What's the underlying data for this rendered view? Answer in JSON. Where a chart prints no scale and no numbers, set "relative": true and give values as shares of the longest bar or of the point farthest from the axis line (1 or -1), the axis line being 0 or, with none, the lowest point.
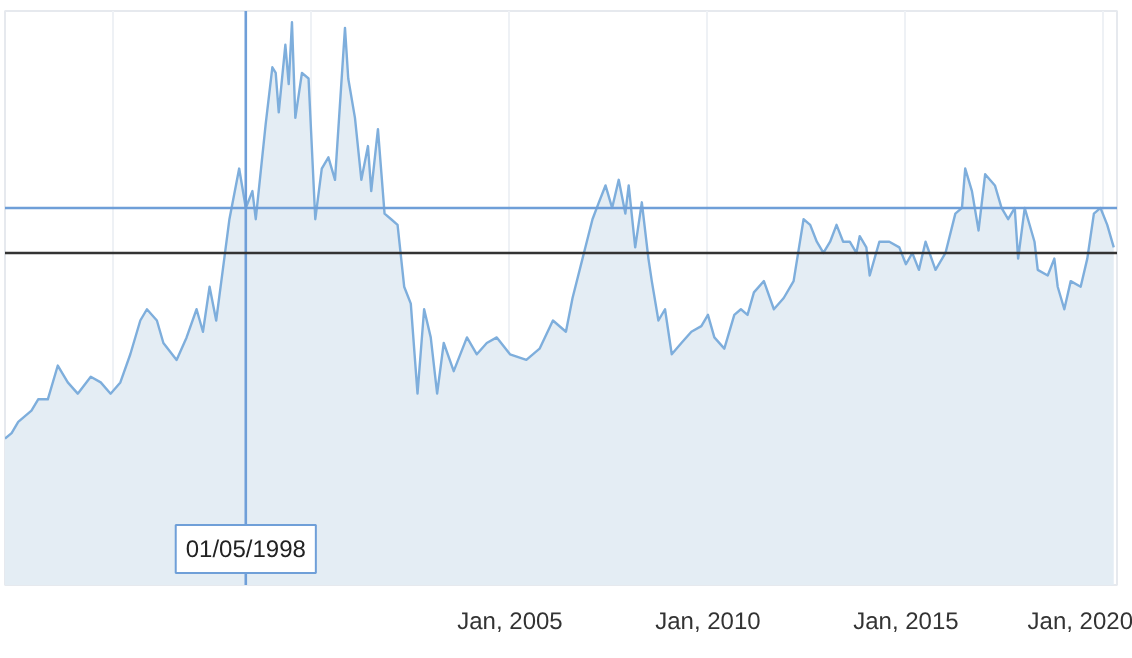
{
  "chart_data": {
    "type": "area",
    "relative": true,
    "color": "#7eaedc",
    "x": [
      "1992-04",
      "1992-06",
      "1992-08",
      "1992-12",
      "1993-02",
      "1993-05",
      "1993-08",
      "1993-11",
      "1994-02",
      "1994-06",
      "1994-09",
      "1994-12",
      "1995-03",
      "1995-06",
      "1995-09",
      "1995-11",
      "1996-02",
      "1996-04",
      "1996-08",
      "1996-11",
      "1997-02",
      "1997-04",
      "1997-06",
      "1997-08",
      "1997-10",
      "1997-12",
      "1998-03",
      "1998-05",
      "1998-07",
      "1998-08",
      "1998-11",
      "1999-01",
      "1999-02",
      "1999-03",
      "1999-05",
      "1999-06",
      "1999-07",
      "1999-08",
      "1999-10",
      "1999-12",
      "2000-02",
      "2000-04",
      "2000-06",
      "2000-08",
      "2000-11",
      "2000-12",
      "2001-02",
      "2001-04",
      "2001-06",
      "2001-07",
      "2001-09",
      "2001-11",
      "2002-01",
      "2002-03",
      "2002-05",
      "2002-07",
      "2002-09",
      "2002-11",
      "2003-01",
      "2003-03",
      "2003-05",
      "2003-08",
      "2003-12",
      "2004-03",
      "2004-06",
      "2004-09",
      "2005-01",
      "2005-06",
      "2005-10",
      "2006-02",
      "2006-06",
      "2006-08",
      "2006-11",
      "2007-02",
      "2007-04",
      "2007-06",
      "2007-08",
      "2007-10",
      "2007-12",
      "2008-01",
      "2008-03",
      "2008-05",
      "2008-07",
      "2008-08",
      "2008-10",
      "2008-12",
      "2009-02",
      "2009-05",
      "2009-08",
      "2009-11",
      "2010-01",
      "2010-03",
      "2010-06",
      "2010-09",
      "2010-11",
      "2011-01",
      "2011-03",
      "2011-06",
      "2011-09",
      "2011-12",
      "2012-03",
      "2012-06",
      "2012-08",
      "2012-10",
      "2012-12",
      "2013-02",
      "2013-04",
      "2013-06",
      "2013-08",
      "2013-10",
      "2013-11",
      "2014-01",
      "2014-02",
      "2014-05",
      "2014-08",
      "2014-11",
      "2015-01",
      "2015-03",
      "2015-05",
      "2015-07",
      "2015-10",
      "2016-01",
      "2016-04",
      "2016-06",
      "2016-07",
      "2016-09",
      "2016-11",
      "2017-01",
      "2017-04",
      "2017-06",
      "2017-08",
      "2017-10",
      "2017-11",
      "2018-01",
      "2018-04",
      "2018-05",
      "2018-08",
      "2018-10",
      "2018-11",
      "2019-01",
      "2019-03",
      "2019-06",
      "2019-08",
      "2019-10",
      "2019-12",
      "2020-02",
      "2020-04"
    ],
    "values": [
      0.26,
      0.27,
      0.29,
      0.31,
      0.33,
      0.33,
      0.39,
      0.36,
      0.34,
      0.37,
      0.36,
      0.34,
      0.36,
      0.41,
      0.47,
      0.49,
      0.47,
      0.43,
      0.4,
      0.44,
      0.49,
      0.45,
      0.53,
      0.47,
      0.56,
      0.65,
      0.74,
      0.67,
      0.7,
      0.65,
      0.82,
      0.92,
      0.91,
      0.84,
      0.96,
      0.89,
      1.0,
      0.83,
      0.91,
      0.9,
      0.65,
      0.74,
      0.76,
      0.72,
      0.99,
      0.9,
      0.83,
      0.72,
      0.78,
      0.7,
      0.81,
      0.66,
      0.65,
      0.64,
      0.53,
      0.5,
      0.34,
      0.49,
      0.44,
      0.34,
      0.43,
      0.38,
      0.44,
      0.41,
      0.43,
      0.44,
      0.41,
      0.4,
      0.42,
      0.47,
      0.45,
      0.51,
      0.58,
      0.65,
      0.68,
      0.71,
      0.67,
      0.72,
      0.66,
      0.71,
      0.6,
      0.68,
      0.58,
      0.54,
      0.47,
      0.49,
      0.41,
      0.43,
      0.45,
      0.46,
      0.48,
      0.44,
      0.42,
      0.48,
      0.49,
      0.48,
      0.52,
      0.54,
      0.49,
      0.51,
      0.54,
      0.65,
      0.64,
      0.61,
      0.59,
      0.61,
      0.64,
      0.61,
      0.61,
      0.59,
      0.62,
      0.6,
      0.55,
      0.61,
      0.61,
      0.6,
      0.57,
      0.59,
      0.56,
      0.61,
      0.56,
      0.59,
      0.66,
      0.67,
      0.74,
      0.7,
      0.63,
      0.73,
      0.71,
      0.67,
      0.65,
      0.67,
      0.58,
      0.67,
      0.61,
      0.56,
      0.55,
      0.58,
      0.53,
      0.49,
      0.54,
      0.53,
      0.58,
      0.66,
      0.67,
      0.64,
      0.6
    ],
    "xlim": [
      "1992-04",
      "2020-05"
    ],
    "xticks": [
      {
        "value": "1995-01",
        "label": null
      },
      {
        "value": "2000-01",
        "label": null
      },
      {
        "value": "2005-01",
        "label": "Jan, 2005"
      },
      {
        "value": "2010-01",
        "label": "Jan, 2010"
      },
      {
        "value": "2015-01",
        "label": "Jan, 2015"
      },
      {
        "value": "2020-01",
        "label": "Jan, 2020"
      }
    ],
    "grid": "x",
    "tick_labels": "x",
    "ref_lines": [
      {
        "axis": "x",
        "value": "1998-05-01",
        "label": "01/05/1998",
        "color": "#6f9fd8"
      },
      {
        "axis": "y",
        "value": 0.67,
        "color": "#6f9fd8"
      },
      {
        "axis": "y",
        "value": 0.59,
        "color": "#333333"
      }
    ]
  }
}
